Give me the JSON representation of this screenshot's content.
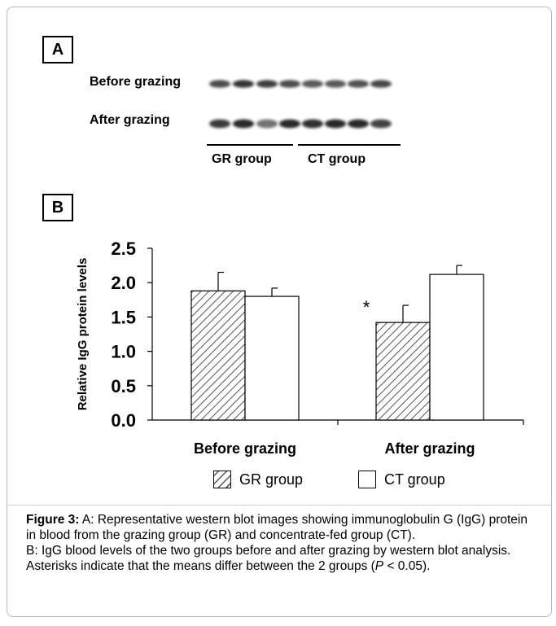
{
  "panel_a": {
    "label": "A",
    "rows": [
      "Before grazing",
      "After grazing"
    ],
    "groups": [
      "GR group",
      "CT group"
    ]
  },
  "panel_b": {
    "label": "B"
  },
  "chart_data": {
    "type": "bar",
    "categories": [
      "Before grazing",
      "After grazing"
    ],
    "series": [
      {
        "name": "GR group",
        "values": [
          1.88,
          1.42
        ],
        "errors": [
          0.27,
          0.25
        ],
        "pattern": "hatched"
      },
      {
        "name": "CT group",
        "values": [
          1.8,
          2.12
        ],
        "errors": [
          0.12,
          0.13
        ],
        "pattern": "white"
      }
    ],
    "ylabel": "Relative IgG protein levels",
    "xlabel": "",
    "ylim": [
      0,
      2.5
    ],
    "yticks": [
      "0.0",
      "0.5",
      "1.0",
      "1.5",
      "2.0",
      "2.5"
    ],
    "annotations": [
      {
        "category": "After grazing",
        "series": "GR group",
        "text": "*"
      }
    ],
    "legend": "bottom-center",
    "grid": false
  },
  "caption": {
    "figure_label": "Figure 3:",
    "line_a": " A: Representative western blot images showing immunoglobulin G (IgG) protein in blood from the grazing group (GR) and concentrate-fed group (CT).",
    "line_b_start": "B: IgG blood levels of the two groups before and after grazing by western blot analysis. Asterisks indicate that the means differ between the 2 groups (",
    "p_symbol": "P",
    "line_b_end": " < 0.05)."
  }
}
